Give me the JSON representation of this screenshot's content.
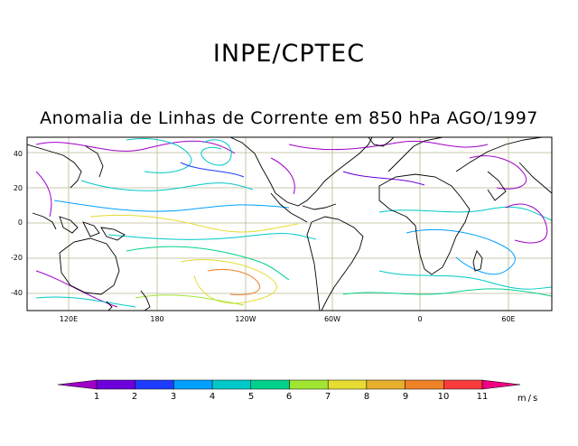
{
  "header": {
    "title": "INPE/CPTEC",
    "subtitle": "Anomalia de Linhas de Corrente em 850 hPa AGO/1997"
  },
  "map": {
    "lat_ticks": [
      "40",
      "20",
      "0",
      "-20",
      "-40"
    ],
    "lon_ticks": [
      "120E",
      "180",
      "120W",
      "60W",
      "0",
      "60E"
    ],
    "grid_color": "#b8b890",
    "land_color": "#000000"
  },
  "colorbar": {
    "labels": [
      "1",
      "2",
      "3",
      "4",
      "5",
      "6",
      "7",
      "8",
      "9",
      "10",
      "11"
    ],
    "unit": "m/s",
    "colors": [
      "#a000c8",
      "#6e00dc",
      "#1e3cff",
      "#00a0ff",
      "#00c8c8",
      "#00d28c",
      "#a0e632",
      "#e6dc32",
      "#e6af2d",
      "#f08228",
      "#fa3c3c",
      "#f00082"
    ]
  }
}
